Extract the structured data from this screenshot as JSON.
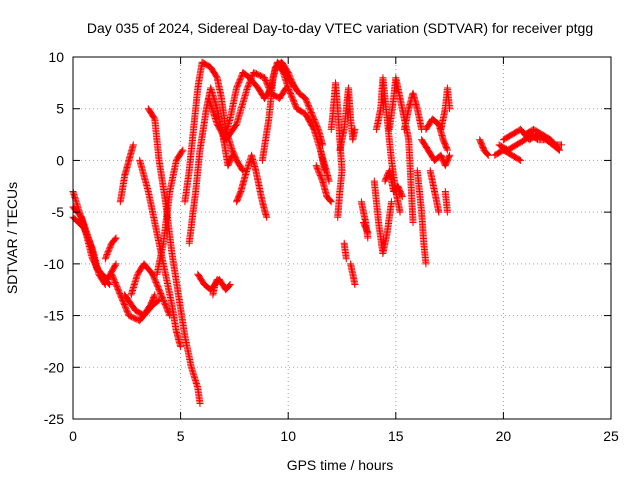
{
  "chart_data": {
    "type": "scatter",
    "title": "Day 035 of 2024, Sidereal Day-to-day VTEC variation (SDTVAR) for receiver ptgg",
    "xlabel": "GPS time / hours",
    "ylabel": "SDTVAR / TECUs",
    "xlim": [
      0,
      25
    ],
    "ylim": [
      -25,
      10
    ],
    "xticks": [
      0,
      5,
      10,
      15,
      20,
      25
    ],
    "yticks": [
      -25,
      -20,
      -15,
      -10,
      -5,
      0,
      5,
      10
    ],
    "grid": true,
    "marker": "+",
    "series_color": "#ff0000",
    "tracks": [
      [
        [
          0.0,
          -3
        ],
        [
          0.3,
          -5
        ],
        [
          0.6,
          -7
        ],
        [
          0.9,
          -9.5
        ],
        [
          1.3,
          -11
        ],
        [
          1.7,
          -12
        ]
      ],
      [
        [
          0.0,
          -4.5
        ],
        [
          0.4,
          -5.5
        ],
        [
          0.8,
          -8
        ],
        [
          1.1,
          -10.5
        ],
        [
          1.6,
          -11.5
        ],
        [
          2.0,
          -10
        ]
      ],
      [
        [
          0.0,
          -5.5
        ],
        [
          0.5,
          -6.5
        ],
        [
          0.9,
          -8.5
        ],
        [
          1.2,
          -11
        ],
        [
          1.5,
          -12
        ]
      ],
      [
        [
          1.5,
          -9.5
        ],
        [
          1.8,
          -8
        ],
        [
          2.0,
          -7.5
        ]
      ],
      [
        [
          1.8,
          -11
        ],
        [
          2.2,
          -13
        ],
        [
          2.6,
          -15
        ],
        [
          3.1,
          -15.5
        ],
        [
          3.6,
          -14
        ],
        [
          3.8,
          -13
        ]
      ],
      [
        [
          2.4,
          -13
        ],
        [
          2.9,
          -14.5
        ],
        [
          3.3,
          -15
        ],
        [
          3.7,
          -14
        ],
        [
          4.0,
          -13.5
        ]
      ],
      [
        [
          2.2,
          -4
        ],
        [
          2.4,
          -1.5
        ],
        [
          2.6,
          0
        ],
        [
          2.8,
          1.5
        ]
      ],
      [
        [
          3.5,
          5
        ],
        [
          3.8,
          4
        ],
        [
          4.0,
          0
        ],
        [
          4.3,
          -4
        ],
        [
          4.6,
          -9
        ],
        [
          4.9,
          -13
        ],
        [
          5.2,
          -17
        ],
        [
          5.5,
          -20
        ],
        [
          5.8,
          -22
        ],
        [
          5.9,
          -23.5
        ]
      ],
      [
        [
          3.1,
          0
        ],
        [
          3.5,
          -3
        ],
        [
          3.9,
          -7
        ],
        [
          4.3,
          -11
        ],
        [
          4.6,
          -14
        ],
        [
          4.8,
          -16.5
        ],
        [
          5.0,
          -18
        ]
      ],
      [
        [
          2.7,
          -13
        ],
        [
          3.0,
          -11
        ],
        [
          3.3,
          -10
        ],
        [
          3.7,
          -11
        ],
        [
          4.1,
          -13
        ],
        [
          4.5,
          -15
        ]
      ],
      [
        [
          3.9,
          -11
        ],
        [
          4.2,
          -8
        ],
        [
          4.5,
          -3
        ],
        [
          4.8,
          0
        ],
        [
          5.1,
          1
        ]
      ],
      [
        [
          5.2,
          -4
        ],
        [
          5.4,
          -1
        ],
        [
          5.6,
          3
        ],
        [
          5.8,
          7
        ],
        [
          6.0,
          9.5
        ],
        [
          6.4,
          9
        ],
        [
          6.7,
          8
        ],
        [
          6.9,
          6
        ],
        [
          7.1,
          3
        ],
        [
          7.4,
          1
        ],
        [
          7.6,
          0
        ],
        [
          7.9,
          -1
        ]
      ],
      [
        [
          5.4,
          -8
        ],
        [
          5.7,
          -3
        ],
        [
          5.9,
          1
        ],
        [
          6.2,
          5
        ],
        [
          6.4,
          7
        ],
        [
          6.7,
          5
        ],
        [
          7.0,
          2
        ],
        [
          7.2,
          -0.5
        ],
        [
          7.4,
          0.5
        ]
      ],
      [
        [
          5.8,
          -11
        ],
        [
          6.1,
          -12
        ],
        [
          6.4,
          -12.5
        ],
        [
          6.8,
          -11.5
        ],
        [
          7.1,
          -12.5
        ],
        [
          7.3,
          -12
        ]
      ],
      [
        [
          6.5,
          -13
        ],
        [
          6.6,
          -12
        ],
        [
          6.7,
          -11.5
        ]
      ],
      [
        [
          6.3,
          6
        ],
        [
          6.7,
          3.5
        ],
        [
          7.1,
          2
        ],
        [
          7.6,
          3.5
        ],
        [
          8.1,
          7
        ],
        [
          8.4,
          8.5
        ],
        [
          8.9,
          8
        ],
        [
          9.2,
          6.5
        ],
        [
          9.6,
          6
        ],
        [
          9.9,
          7
        ]
      ],
      [
        [
          7.0,
          2
        ],
        [
          7.3,
          4
        ],
        [
          7.6,
          7
        ],
        [
          7.9,
          8.5
        ],
        [
          8.2,
          8
        ],
        [
          8.6,
          7
        ],
        [
          8.9,
          6
        ],
        [
          9.2,
          7
        ],
        [
          9.4,
          9
        ],
        [
          9.7,
          9.5
        ],
        [
          10.0,
          8.5
        ],
        [
          10.3,
          7
        ]
      ],
      [
        [
          7.6,
          -4
        ],
        [
          7.8,
          -3
        ],
        [
          8.0,
          -1.5
        ],
        [
          8.3,
          0.5
        ],
        [
          8.5,
          -1
        ],
        [
          8.6,
          -2
        ],
        [
          8.8,
          -4
        ],
        [
          9.0,
          -5.5
        ]
      ],
      [
        [
          8.8,
          0
        ],
        [
          9.1,
          4
        ],
        [
          9.3,
          8
        ],
        [
          9.5,
          9.5
        ],
        [
          9.7,
          9
        ],
        [
          10.0,
          7
        ],
        [
          10.4,
          5
        ],
        [
          10.8,
          4.5
        ],
        [
          11.2,
          3
        ],
        [
          11.5,
          1
        ],
        [
          11.7,
          -1
        ]
      ],
      [
        [
          9.6,
          9
        ],
        [
          10.0,
          8
        ],
        [
          10.5,
          6.5
        ],
        [
          10.8,
          6
        ],
        [
          11.1,
          4.5
        ],
        [
          11.4,
          3
        ],
        [
          11.6,
          1.5
        ]
      ],
      [
        [
          11.5,
          1
        ],
        [
          11.7,
          -0.5
        ],
        [
          11.9,
          -2
        ]
      ],
      [
        [
          11.3,
          -0.5
        ],
        [
          11.6,
          -2
        ],
        [
          11.8,
          -3.5
        ],
        [
          12.0,
          -4
        ]
      ],
      [
        [
          12.0,
          3
        ],
        [
          12.1,
          5
        ],
        [
          12.2,
          7.5
        ],
        [
          12.3,
          5
        ],
        [
          12.4,
          2
        ],
        [
          12.5,
          -1
        ],
        [
          12.4,
          -3
        ],
        [
          12.3,
          -5.5
        ]
      ],
      [
        [
          12.4,
          1
        ],
        [
          12.6,
          3
        ],
        [
          12.7,
          5
        ],
        [
          12.8,
          7
        ],
        [
          12.9,
          4
        ],
        [
          13.0,
          2
        ],
        [
          13.1,
          3
        ]
      ],
      [
        [
          12.9,
          -10
        ],
        [
          13.0,
          -11
        ],
        [
          13.1,
          -12
        ]
      ],
      [
        [
          12.6,
          -8
        ],
        [
          12.7,
          -9.5
        ]
      ],
      [
        [
          13.5,
          -6
        ],
        [
          13.7,
          -7
        ]
      ],
      [
        [
          13.4,
          -4
        ],
        [
          13.6,
          -6
        ],
        [
          13.7,
          -7.5
        ]
      ],
      [
        [
          14.0,
          -2
        ],
        [
          14.2,
          -6
        ],
        [
          14.4,
          -9
        ],
        [
          14.6,
          -7
        ],
        [
          14.8,
          -4
        ]
      ],
      [
        [
          14.1,
          3
        ],
        [
          14.3,
          5
        ],
        [
          14.4,
          8
        ],
        [
          14.6,
          4
        ],
        [
          14.8,
          0
        ],
        [
          15.0,
          -3
        ],
        [
          15.2,
          -5
        ]
      ],
      [
        [
          14.7,
          3
        ],
        [
          14.9,
          6
        ],
        [
          15.0,
          8
        ],
        [
          15.2,
          6
        ],
        [
          15.4,
          4
        ],
        [
          15.6,
          2
        ],
        [
          15.7,
          -2
        ],
        [
          15.8,
          -6
        ]
      ],
      [
        [
          14.5,
          -2
        ],
        [
          14.7,
          -1
        ],
        [
          14.9,
          -3
        ],
        [
          15.1,
          -2.5
        ],
        [
          15.3,
          -3.5
        ]
      ],
      [
        [
          15.4,
          3
        ],
        [
          15.6,
          5
        ],
        [
          15.8,
          6.5
        ],
        [
          16.0,
          5
        ],
        [
          16.2,
          3
        ]
      ],
      [
        [
          16.0,
          -1
        ],
        [
          16.1,
          -3
        ],
        [
          16.2,
          -5
        ],
        [
          16.3,
          -8
        ],
        [
          16.4,
          -10
        ]
      ],
      [
        [
          16.2,
          2
        ],
        [
          16.5,
          1
        ],
        [
          16.8,
          0
        ],
        [
          17.1,
          0.5
        ],
        [
          17.3,
          -0.5
        ],
        [
          17.5,
          0.5
        ]
      ],
      [
        [
          16.4,
          3
        ],
        [
          16.7,
          4
        ],
        [
          17.0,
          3.5
        ],
        [
          17.2,
          2
        ],
        [
          17.4,
          1
        ]
      ],
      [
        [
          16.6,
          -1
        ],
        [
          16.8,
          -3
        ],
        [
          17.0,
          -5
        ]
      ],
      [
        [
          17.1,
          3
        ],
        [
          17.3,
          5
        ],
        [
          17.4,
          7
        ],
        [
          17.5,
          5
        ]
      ],
      [
        [
          17.3,
          -3
        ],
        [
          17.4,
          -5
        ]
      ],
      [
        [
          18.9,
          2
        ],
        [
          19.1,
          1
        ],
        [
          19.3,
          0.5
        ]
      ],
      [
        [
          19.8,
          1.5
        ],
        [
          20.2,
          1
        ],
        [
          20.6,
          1.5
        ],
        [
          21.0,
          2
        ],
        [
          21.3,
          2.5
        ],
        [
          21.6,
          2
        ],
        [
          22.0,
          2
        ],
        [
          22.3,
          1.5
        ],
        [
          22.6,
          1
        ]
      ],
      [
        [
          20.0,
          2
        ],
        [
          20.4,
          2.5
        ],
        [
          20.8,
          3
        ],
        [
          21.2,
          2
        ],
        [
          21.6,
          2.5
        ],
        [
          22.0,
          2
        ],
        [
          22.4,
          1.5
        ],
        [
          22.7,
          1.5
        ]
      ],
      [
        [
          19.6,
          0.5
        ],
        [
          20.0,
          1
        ],
        [
          20.4,
          0.5
        ],
        [
          20.8,
          0
        ]
      ],
      [
        [
          21.0,
          2.5
        ],
        [
          21.4,
          3
        ],
        [
          21.8,
          2.5
        ],
        [
          22.2,
          2
        ],
        [
          22.6,
          1
        ]
      ]
    ]
  }
}
